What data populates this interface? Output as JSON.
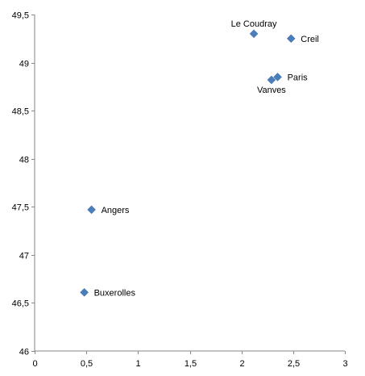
{
  "chart_data": {
    "type": "scatter",
    "title": "",
    "xlabel": "",
    "ylabel": "",
    "xlim": [
      0,
      3
    ],
    "ylim": [
      46,
      49.5
    ],
    "x_ticks": [
      0,
      0.5,
      1,
      1.5,
      2,
      2.5,
      3
    ],
    "x_tick_labels": [
      "0",
      "0,5",
      "1",
      "1,5",
      "2",
      "2,5",
      "3"
    ],
    "y_ticks": [
      46,
      46.5,
      47,
      47.5,
      48,
      48.5,
      49,
      49.5
    ],
    "y_tick_labels": [
      "46",
      "46,5",
      "47",
      "47,5",
      "48",
      "48,5",
      "49",
      "49,5"
    ],
    "grid": false,
    "legend": "none",
    "marker": "diamond",
    "marker_color": "#4a7ebb",
    "points": [
      {
        "label": "Le Coudray",
        "x": 2.12,
        "y": 49.3,
        "label_position": "above"
      },
      {
        "label": "Creil",
        "x": 2.48,
        "y": 49.25,
        "label_position": "right"
      },
      {
        "label": "Paris",
        "x": 2.35,
        "y": 48.85,
        "label_position": "right"
      },
      {
        "label": "Vanves",
        "x": 2.29,
        "y": 48.82,
        "label_position": "below"
      },
      {
        "label": "Angers",
        "x": 0.55,
        "y": 47.47,
        "label_position": "right"
      },
      {
        "label": "Buxerolles",
        "x": 0.48,
        "y": 46.61,
        "label_position": "right"
      }
    ]
  }
}
